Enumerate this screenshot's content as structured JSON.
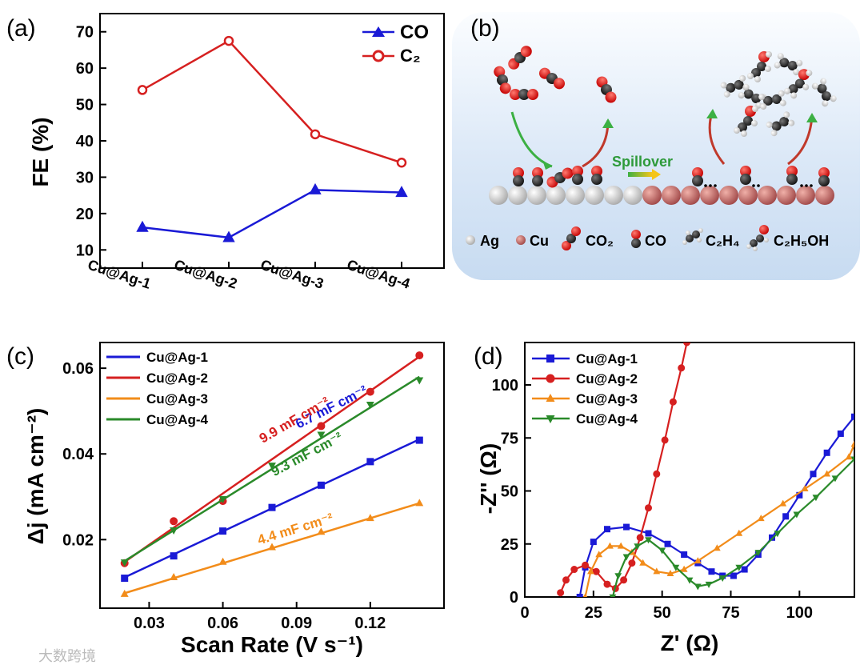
{
  "watermark": "大数跨境",
  "panels": {
    "a": {
      "label": "(a)"
    },
    "b": {
      "label": "(b)"
    },
    "c": {
      "label": "(c)"
    },
    "d": {
      "label": "(d)"
    }
  },
  "schematic": {
    "spillover_label": "Spillover",
    "legend": {
      "ag": "Ag",
      "cu": "Cu",
      "co2": "CO₂",
      "co": "CO",
      "c2h4": "C₂H₄",
      "c2h5oh": "C₂H₅OH"
    },
    "colors": {
      "ag": "#dcdcdc",
      "cu": "#c26a6a",
      "oxygen": "#e41a1c",
      "carbon": "#333333",
      "hydrogen": "#ffffff"
    }
  },
  "chart_data": [
    {
      "id": "a",
      "type": "line",
      "title": "",
      "xlabel": "",
      "ylabel": "FE (%)",
      "categories": [
        "Cu@Ag-1",
        "Cu@Ag-2",
        "Cu@Ag-3",
        "Cu@Ag-4"
      ],
      "ylim": [
        5,
        75
      ],
      "yticks": [
        10,
        20,
        30,
        40,
        50,
        60,
        70
      ],
      "legend_position": "top-right",
      "series": [
        {
          "name": "CO",
          "marker": "triangle",
          "color": "#1a1ad6",
          "values": [
            16.2,
            13.4,
            26.5,
            25.8
          ]
        },
        {
          "name": "C₂",
          "marker": "circle",
          "color": "#d62020",
          "values": [
            54,
            67.5,
            41.8,
            34
          ]
        }
      ]
    },
    {
      "id": "c",
      "type": "scatter",
      "title": "",
      "xlabel": "Scan Rate (V s⁻¹)",
      "ylabel": "Δj (mA cm⁻²)",
      "xlim": [
        0.01,
        0.15
      ],
      "ylim": [
        0.004,
        0.066
      ],
      "xticks": [
        0.03,
        0.06,
        0.09,
        0.12
      ],
      "xtick_labels": [
        "0.03",
        "0.06",
        "0.09",
        "0.12"
      ],
      "yticks": [
        0.02,
        0.04,
        0.06
      ],
      "ytick_labels": [
        "0.02",
        "0.04",
        "0.06"
      ],
      "legend_position": "top-left",
      "series": [
        {
          "name": "Cu@Ag-1",
          "marker": "square",
          "color": "#1a1ad6",
          "annotation": "6.7 mF cm⁻²",
          "x": [
            0.02,
            0.04,
            0.06,
            0.08,
            0.1,
            0.12,
            0.14
          ],
          "y": [
            0.011,
            0.0162,
            0.022,
            0.0275,
            0.0327,
            0.0382,
            0.0432
          ],
          "fit": [
            0.0112,
            0.0434
          ]
        },
        {
          "name": "Cu@Ag-2",
          "marker": "circle",
          "color": "#d62020",
          "annotation": "9.9 mF cm⁻²",
          "x": [
            0.02,
            0.04,
            0.06,
            0.1,
            0.12,
            0.14
          ],
          "y": [
            0.0145,
            0.0243,
            0.029,
            0.0465,
            0.0545,
            0.063
          ],
          "fit": [
            0.0148,
            0.0627
          ]
        },
        {
          "name": "Cu@Ag-3",
          "marker": "triangle",
          "color": "#f28c1a",
          "annotation": "4.4 mF cm⁻²",
          "x": [
            0.02,
            0.04,
            0.06,
            0.08,
            0.1,
            0.12,
            0.14
          ],
          "y": [
            0.0073,
            0.0112,
            0.0148,
            0.0182,
            0.0218,
            0.025,
            0.0285
          ],
          "fit": [
            0.0075,
            0.0285
          ]
        },
        {
          "name": "Cu@Ag-4",
          "marker": "triangle-down",
          "color": "#2a8a2a",
          "annotation": "9.3 mF cm⁻²",
          "x": [
            0.02,
            0.04,
            0.06,
            0.08,
            0.1,
            0.12,
            0.14
          ],
          "y": [
            0.0147,
            0.0222,
            0.0295,
            0.0373,
            0.0445,
            0.0515,
            0.0572
          ],
          "fit": [
            0.015,
            0.058
          ]
        }
      ]
    },
    {
      "id": "d",
      "type": "scatter",
      "title": "",
      "xlabel": "Z' (Ω)",
      "ylabel": "-Z'' (Ω)",
      "xlim": [
        0,
        120
      ],
      "ylim": [
        0,
        120
      ],
      "xticks": [
        0,
        25,
        50,
        75,
        100
      ],
      "yticks": [
        0,
        25,
        50,
        75,
        100
      ],
      "legend_position": "top-left",
      "series": [
        {
          "name": "Cu@Ag-1",
          "marker": "square",
          "color": "#1a1ad6",
          "x": [
            20,
            22,
            25,
            30,
            37,
            45,
            52,
            58,
            63,
            68,
            72,
            76,
            80,
            85,
            90,
            95,
            100,
            105,
            110,
            115,
            120
          ],
          "y": [
            0,
            14,
            26,
            32,
            33,
            30,
            25,
            20,
            16,
            12,
            10,
            10,
            13,
            20,
            28,
            38,
            48,
            58,
            68,
            77,
            85
          ]
        },
        {
          "name": "Cu@Ag-2",
          "marker": "circle",
          "color": "#d62020",
          "x": [
            13,
            15,
            18,
            22,
            26,
            30,
            33,
            36,
            39,
            42,
            45,
            48,
            51,
            54,
            57,
            59
          ],
          "y": [
            2,
            8,
            13,
            15,
            12,
            6,
            4,
            8,
            16,
            28,
            42,
            58,
            74,
            92,
            108,
            120
          ]
        },
        {
          "name": "Cu@Ag-3",
          "marker": "triangle",
          "color": "#f28c1a",
          "x": [
            22,
            24,
            27,
            31,
            35,
            39,
            43,
            48,
            53,
            58,
            63,
            70,
            78,
            86,
            94,
            102,
            110,
            118,
            120
          ],
          "y": [
            0,
            12,
            20,
            24,
            24,
            21,
            16,
            12,
            11,
            13,
            17,
            23,
            30,
            37,
            44,
            51,
            58,
            66,
            72
          ]
        },
        {
          "name": "Cu@Ag-4",
          "marker": "triangle-down",
          "color": "#2a8a2a",
          "x": [
            32,
            34,
            37,
            41,
            45,
            50,
            55,
            60,
            63,
            67,
            72,
            78,
            85,
            92,
            99,
            106,
            113,
            120
          ],
          "y": [
            0,
            10,
            19,
            24,
            27,
            22,
            14,
            8,
            5,
            6,
            9,
            14,
            21,
            30,
            39,
            47,
            56,
            65
          ]
        }
      ]
    }
  ]
}
